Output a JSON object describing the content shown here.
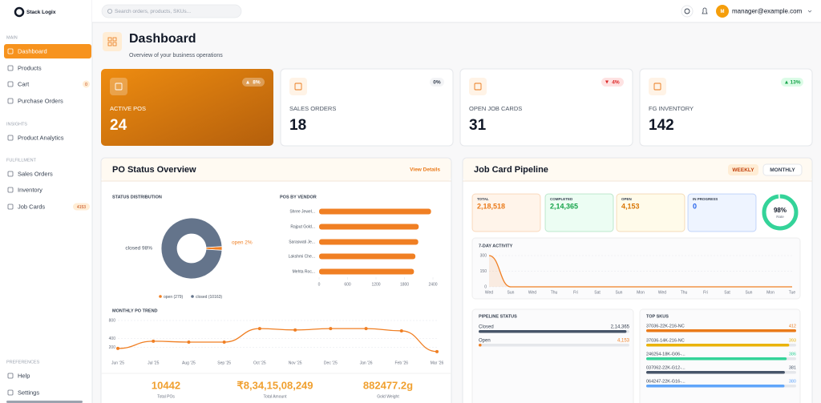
{
  "sidebar": {
    "brand": "Stack Logix",
    "sections": [
      {
        "title": "MAIN",
        "items": [
          {
            "label": "Dashboard",
            "active": true
          },
          {
            "label": "Products"
          },
          {
            "label": "Cart",
            "badge": "0"
          },
          {
            "label": "Purchase Orders"
          }
        ]
      },
      {
        "title": "INSIGHTS",
        "items": [
          {
            "label": "Product Analytics"
          }
        ]
      },
      {
        "title": "FULFILLMENT",
        "items": [
          {
            "label": "Sales Orders"
          },
          {
            "label": "Inventory"
          },
          {
            "label": "Job Cards",
            "badge": "4153"
          }
        ]
      },
      {
        "title": "PREFERENCES",
        "items": [
          {
            "label": "Help"
          },
          {
            "label": "Settings"
          }
        ]
      }
    ]
  },
  "topbar": {
    "search_placeholder": "Search orders, products, SKUs...",
    "avatar": "M",
    "user": "manager@example.com"
  },
  "header": {
    "title": "Dashboard",
    "subtitle": "Overview of your business operations"
  },
  "kpis": [
    {
      "label": "ACTIVE POS",
      "value": "24",
      "change": "8%",
      "trend": "up"
    },
    {
      "label": "SALES ORDERS",
      "value": "18",
      "change": "0%",
      "trend": "flat"
    },
    {
      "label": "OPEN JOB CARDS",
      "value": "31",
      "change": "4%",
      "trend": "down"
    },
    {
      "label": "FG INVENTORY",
      "value": "142",
      "change": "13%",
      "trend": "up"
    }
  ],
  "po_status": {
    "title": "PO Status Overview",
    "link": "View Details",
    "distribution": {
      "title": "STATUS DISTRIBUTION",
      "type": "pie",
      "slices": [
        {
          "value": 2,
          "label": "open 2%",
          "legend": "open (279)",
          "color": "#f07f23"
        },
        {
          "value": 98,
          "label": "closed 98%",
          "legend": "closed (10163)",
          "color": "#64748b"
        }
      ]
    },
    "vendors": {
      "title": "POS BY VENDOR",
      "type": "bar",
      "color": "#f07f23",
      "categories": [
        "Shree Jewel...",
        "Rajput Gold...",
        "Saraswati Je...",
        "Lakshmi Che...",
        "Mehta Roc..."
      ],
      "values": [
        2360,
        2100,
        2090,
        2030,
        2000
      ],
      "xlim": [
        0,
        2400
      ],
      "xticks": [
        0,
        600,
        1200,
        1800,
        2400
      ]
    },
    "trend": {
      "title": "MONTHLY PO TREND",
      "type": "line",
      "color": "#f07f23",
      "categories": [
        "Jun '25",
        "Jul '25",
        "Aug '25",
        "Sep '25",
        "Oct '25",
        "Nov '25",
        "Dec '25",
        "Jan '26",
        "Feb '26",
        "Mar '26"
      ],
      "values": [
        180,
        340,
        320,
        320,
        620,
        590,
        620,
        620,
        570,
        110
      ],
      "ylim": [
        0,
        800
      ],
      "yticks": [
        200,
        400,
        800
      ],
      "grid": true
    },
    "stats": [
      {
        "value": "10442",
        "label": "Total POs"
      },
      {
        "value": "₹8,34,15,08,249",
        "label": "Total Amount"
      },
      {
        "value": "882477.2g",
        "label": "Gold Weight"
      }
    ]
  },
  "job": {
    "title": "Job Card Pipeline",
    "tabs": [
      {
        "label": "WEEKLY",
        "active": true
      },
      {
        "label": "MONTHLY"
      }
    ],
    "cards": [
      {
        "label": "TOTAL",
        "value": "2,18,518",
        "color": "#ea7a1a",
        "bg": "#fff4ea"
      },
      {
        "label": "COMPLETED",
        "value": "2,14,365",
        "color": "#16a34a",
        "bg": "#ecfdf3"
      },
      {
        "label": "OPEN",
        "value": "4,153",
        "color": "#d97706",
        "bg": "#fffbea"
      },
      {
        "label": "IN PROGRESS",
        "value": "0",
        "color": "#2563eb",
        "bg": "#eef4ff"
      }
    ],
    "rate": {
      "value": 98,
      "label": "98%",
      "caption": "Rate",
      "color": "#34d399"
    },
    "activity": {
      "title": "7-DAY ACTIVITY",
      "type": "line",
      "color": "#f07f23",
      "categories": [
        "Wed",
        "Sun",
        "Wed",
        "Thu",
        "Fri",
        "Sat",
        "Sun",
        "Mon",
        "Wed",
        "Thu",
        "Fri",
        "Sat",
        "Sun",
        "Mon",
        "Tue"
      ],
      "values": [
        300,
        0,
        0,
        0,
        0,
        0,
        0,
        0,
        0,
        0,
        0,
        0,
        0,
        0,
        0
      ],
      "ylim": [
        0,
        300
      ],
      "yticks": [
        0,
        150,
        300
      ],
      "grid": true
    },
    "pipeline": {
      "title": "PIPELINE STATUS",
      "items": [
        {
          "name": "Closed",
          "value": 214365,
          "label": "2,14,365",
          "color": "#475569"
        },
        {
          "name": "Open",
          "value": 4153,
          "label": "4,153",
          "color": "#f07f23"
        }
      ]
    },
    "top_skus": {
      "title": "TOP SKUS",
      "items": [
        {
          "name": "37036-22K-216-NC",
          "value": 412,
          "color": "#ea7a1a"
        },
        {
          "name": "37036-14K-216-NC",
          "value": 393,
          "color": "#eab308"
        },
        {
          "name": "246254-18K-G06-...",
          "value": 386,
          "color": "#34d399"
        },
        {
          "name": "037062-22K-G12-...",
          "value": 381,
          "color": "#475569"
        },
        {
          "name": "064247-22K-G16-...",
          "value": 380,
          "color": "#60a5fa"
        }
      ]
    }
  }
}
